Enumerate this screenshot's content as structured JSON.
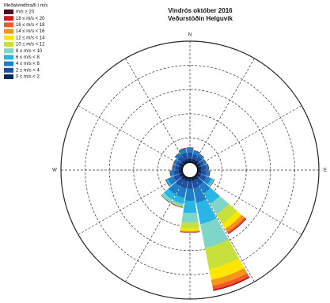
{
  "chart_data": {
    "type": "windrose",
    "title": "Vindrós október 2016",
    "subtitle": "Veðurstöðin Helguvík",
    "legend_title": "Meðalvindhraði í m/s",
    "compass": [
      "N",
      "E",
      "S",
      "W"
    ],
    "directions": [
      0,
      20,
      40,
      60,
      80,
      100,
      120,
      140,
      160,
      180,
      200,
      220,
      240,
      260,
      280,
      300,
      320,
      340
    ],
    "rlim": [
      0,
      10
    ],
    "rticks": [
      2,
      4,
      6,
      8,
      10
    ],
    "series": [
      {
        "name": "0 ≤ m/s < 2",
        "color": "#0b2a5e",
        "values": [
          0.3,
          0.3,
          0.3,
          0.3,
          0.3,
          0.3,
          0.3,
          0.3,
          0.3,
          0.3,
          0.3,
          0.3,
          0.3,
          0.3,
          0.3,
          0.3,
          0.3,
          0.3
        ]
      },
      {
        "name": "2 ≤ m/s < 4",
        "color": "#1f4fa0",
        "values": [
          0.5,
          0.4,
          0.4,
          0.3,
          0.4,
          0.4,
          0.5,
          0.5,
          0.6,
          0.6,
          0.6,
          0.6,
          0.5,
          0.4,
          0.3,
          0.3,
          0.4,
          0.5
        ]
      },
      {
        "name": "4 ≤ m/s < 6",
        "color": "#1e7fc8",
        "values": [
          0.4,
          0.3,
          0.2,
          0.2,
          0.2,
          0.3,
          0.4,
          0.8,
          1.2,
          1.0,
          0.8,
          0.8,
          0.5,
          0.3,
          0.2,
          0.2,
          0.3,
          0.4
        ]
      },
      {
        "name": "6 ≤ m/s < 8",
        "color": "#29b6e6",
        "values": [
          0,
          0,
          0,
          0,
          0,
          0,
          0.2,
          1.0,
          1.8,
          1.0,
          0.5,
          0.5,
          0.2,
          0,
          0,
          0,
          0,
          0
        ]
      },
      {
        "name": "8 ≤ m/s < 10",
        "color": "#7fd6c8",
        "values": [
          0,
          0,
          0,
          0,
          0,
          0,
          0.1,
          1.0,
          2.0,
          0.8,
          0.2,
          0.3,
          0,
          0,
          0,
          0,
          0,
          0
        ]
      },
      {
        "name": "10 ≤ m/s < 12",
        "color": "#c8e03c",
        "values": [
          0,
          0,
          0,
          0,
          0,
          0,
          0,
          0.9,
          1.8,
          0.5,
          0.1,
          0,
          0,
          0,
          0,
          0,
          0,
          0
        ]
      },
      {
        "name": "12 ≤ m/s < 14",
        "color": "#ffe600",
        "values": [
          0,
          0,
          0,
          0,
          0,
          0,
          0,
          0.5,
          0.9,
          0.2,
          0,
          0,
          0,
          0,
          0,
          0,
          0,
          0
        ]
      },
      {
        "name": "14 ≤ m/s < 16",
        "color": "#f7941d",
        "values": [
          0,
          0,
          0,
          0,
          0,
          0,
          0,
          0.3,
          0.5,
          0.1,
          0,
          0,
          0,
          0,
          0,
          0,
          0,
          0
        ]
      },
      {
        "name": "16 ≤ m/s < 18",
        "color": "#f05a28",
        "values": [
          0,
          0,
          0,
          0,
          0,
          0,
          0,
          0.15,
          0.3,
          0,
          0,
          0,
          0,
          0,
          0,
          0,
          0,
          0
        ]
      },
      {
        "name": "18 ≤ m/s < 20",
        "color": "#d7191c",
        "values": [
          0,
          0,
          0,
          0,
          0,
          0,
          0,
          0.05,
          0.1,
          0,
          0,
          0,
          0,
          0,
          0,
          0,
          0,
          0
        ]
      },
      {
        "name": "m/s ≥ 20",
        "color": "#4b0a1e",
        "values": [
          0,
          0,
          0,
          0,
          0,
          0,
          0,
          0,
          0,
          0,
          0,
          0,
          0,
          0,
          0,
          0,
          0,
          0
        ]
      }
    ]
  }
}
